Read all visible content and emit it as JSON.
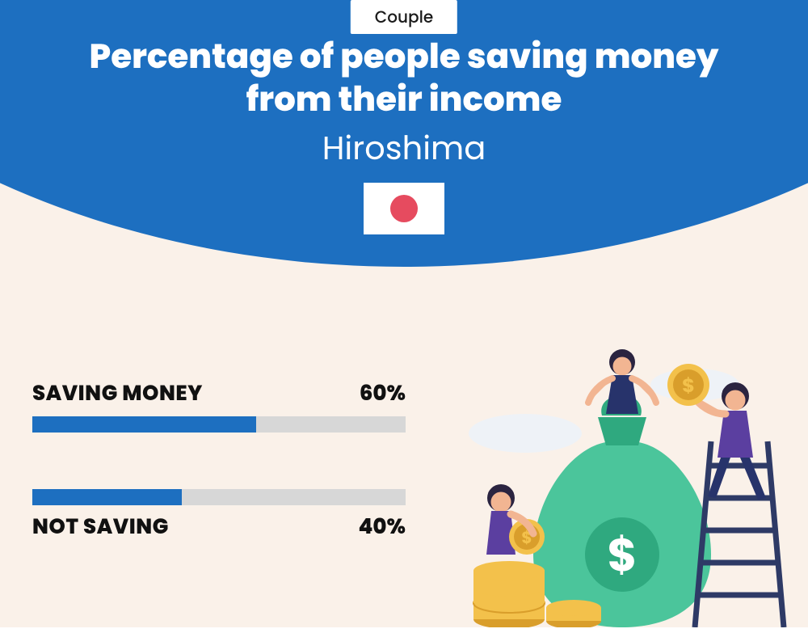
{
  "colors": {
    "page_bg": "#faf1e9",
    "arc_bg": "#1d6fc0",
    "badge_bg": "#ffffff",
    "badge_text": "#1a1a1a",
    "title_color": "#ffffff",
    "flag_bg": "#ffffff",
    "flag_dot": "#e64b5f",
    "bar_track": "#d7d7d7",
    "bar_fill": "#1d6fc0",
    "text_dark": "#111111",
    "bag_green": "#4bc59b",
    "bag_green_dark": "#2fa97f",
    "coin_gold": "#f3c14b",
    "coin_gold_dark": "#d99e2b",
    "person_purple": "#5b3fa0",
    "person_navy": "#27336b",
    "person_skin": "#f2b592",
    "person_hair": "#2b2440",
    "ladder": "#2e3a66",
    "cloud": "#eef2f7"
  },
  "badge": {
    "label": "Couple"
  },
  "header": {
    "title_line1": "Percentage of people saving money",
    "title_line2": "from their income",
    "subtitle": "Hiroshima",
    "title_fontsize": 42,
    "subtitle_fontsize": 40
  },
  "bars": {
    "label_fontsize": 26,
    "items": [
      {
        "label": "SAVING MONEY",
        "value_pct": 60,
        "value_text": "60%"
      },
      {
        "label": "NOT SAVING",
        "value_pct": 40,
        "value_text": "40%"
      }
    ]
  }
}
